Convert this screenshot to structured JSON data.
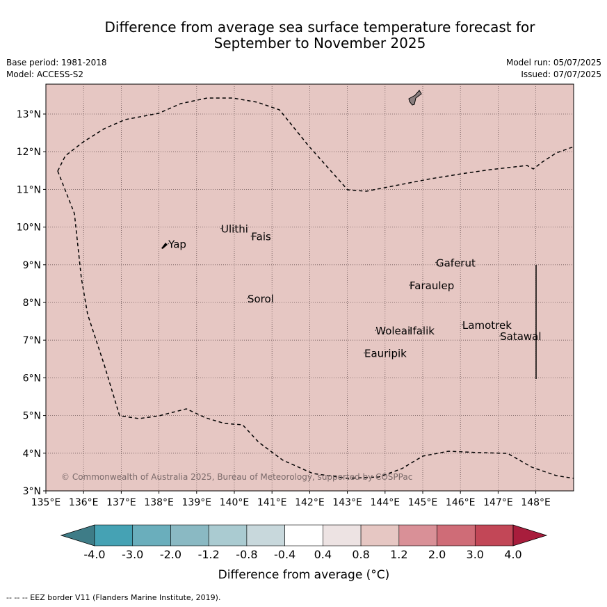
{
  "title": {
    "line1": "Difference from average sea surface temperature forecast for",
    "line2": "September to November 2025"
  },
  "meta": {
    "base_period": "Base period: 1981-2018",
    "model": "Model: ACCESS-S2",
    "model_run": "Model run: 05/07/2025",
    "issued": "Issued: 07/07/2025"
  },
  "map": {
    "lon_ticks": [
      "135°E",
      "136°E",
      "137°E",
      "138°E",
      "139°E",
      "140°E",
      "141°E",
      "142°E",
      "143°E",
      "144°E",
      "145°E",
      "146°E",
      "147°E",
      "148°E"
    ],
    "lat_ticks": [
      "3°N",
      "4°N",
      "5°N",
      "6°N",
      "7°N",
      "8°N",
      "9°N",
      "10°N",
      "11°N",
      "12°N",
      "13°N"
    ],
    "background_color": "#e6c7c3",
    "islands": [
      {
        "name": "Yap",
        "lon": 138.25,
        "lat": 9.45
      },
      {
        "name": "Ulithi",
        "lon": 139.65,
        "lat": 9.85
      },
      {
        "name": "Fais",
        "lon": 140.45,
        "lat": 9.65
      },
      {
        "name": "Gaferut",
        "lon": 145.35,
        "lat": 8.95
      },
      {
        "name": "Faraulep",
        "lon": 144.65,
        "lat": 8.35
      },
      {
        "name": "Sorol",
        "lon": 140.35,
        "lat": 8.0
      },
      {
        "name": "Lamotrek",
        "lon": 146.05,
        "lat": 7.3
      },
      {
        "name": "Satawal",
        "lon": 147.05,
        "lat": 7.0
      },
      {
        "name": "Woleai",
        "lon": 143.75,
        "lat": 7.15
      },
      {
        "name": "Ifalik",
        "lon": 144.65,
        "lat": 7.15
      },
      {
        "name": "Eauripik",
        "lon": 143.45,
        "lat": 6.55
      }
    ],
    "copyright": "© Commonwealth of Australia 2025, Bureau of Meteorology, supported by COSPPac"
  },
  "colorbar": {
    "ticks": [
      "-4.0",
      "-3.0",
      "-2.0",
      "-1.2",
      "-0.8",
      "-0.4",
      "0.4",
      "0.8",
      "1.2",
      "2.0",
      "3.0",
      "4.0"
    ],
    "colors": [
      "#45a2b4",
      "#6aaebc",
      "#8ab9c3",
      "#aacbd1",
      "#c8d8dc",
      "#ffffff",
      "#ede3e3",
      "#e6c7c3",
      "#d99097",
      "#cf6c77",
      "#c24757"
    ],
    "under_color": "#3e7c87",
    "over_color": "#a81d3c",
    "label": "Difference from average (°C)"
  },
  "footer": "--  --  -- EEZ border V11 (Flanders Marine Institute, 2019)."
}
